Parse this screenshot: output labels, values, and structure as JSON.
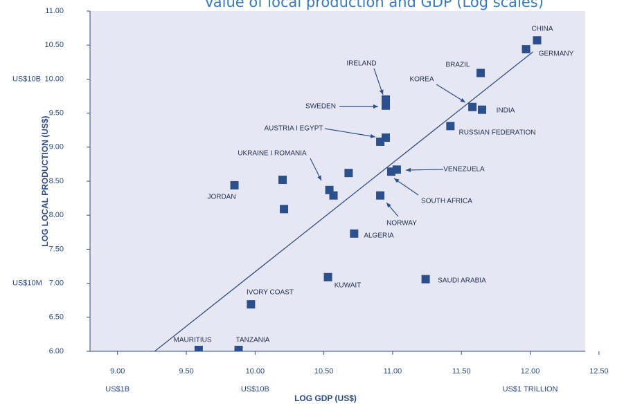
{
  "chart_data": {
    "type": "scatter",
    "title": "Value of local production and GDP (Log scales)",
    "x_label": "LOG GDP (US$)",
    "y_label": "LOG LOCAL PRODUCTION (US$)",
    "color": "#2b4f8a",
    "background": "#e6e7f2",
    "x": [
      12.05,
      11.97,
      11.64,
      11.58,
      11.65,
      11.42,
      10.95,
      10.95,
      10.95,
      10.91,
      11.03,
      10.99,
      10.91,
      10.72,
      10.68,
      10.54,
      10.57,
      10.2,
      10.21,
      9.85,
      10.53,
      11.24,
      9.97,
      9.59,
      9.88
    ],
    "values": [
      10.57,
      10.44,
      10.09,
      9.59,
      9.55,
      9.31,
      9.7,
      9.61,
      9.14,
      9.08,
      8.67,
      8.64,
      8.29,
      7.73,
      8.62,
      8.37,
      8.29,
      8.52,
      8.09,
      8.44,
      7.09,
      7.06,
      6.69,
      6.02,
      6.02
    ],
    "annotations": [
      "CHINA",
      "GERMANY",
      "BRAZIL",
      "KOREA",
      "INDIA",
      "RUSSIAN FEDERATION",
      "IRELAND",
      "SWEDEN",
      "AUSTRIA I EGYPT",
      "VENEZUELA",
      "SOUTH AFRICA",
      "NORWAY",
      "ALGERIA",
      "UKRAINE I ROMANIA",
      "JORDAN",
      "KUWAIT",
      "SAUDI ARABIA",
      "IVORY COAST",
      "MAURITIUS",
      "TANZANIA"
    ],
    "trendline": {
      "x": [
        9.27,
        12.02
      ],
      "values": [
        6.0,
        10.4
      ]
    },
    "xlim": [
      8.8,
      12.4
    ],
    "ylim": [
      6,
      11
    ],
    "xticks": [
      {
        "value": 9,
        "label": "9.00"
      },
      {
        "value": 9.5,
        "label": "9.50"
      },
      {
        "value": 10,
        "label": "10.00"
      },
      {
        "value": 10.5,
        "label": "10.50"
      },
      {
        "value": 11,
        "label": "11.00"
      },
      {
        "value": 11.5,
        "label": "11.50"
      },
      {
        "value": 12,
        "label": "12.00"
      },
      {
        "value": 12.5,
        "label": "12.50"
      }
    ],
    "yticks": [
      {
        "value": 6,
        "label": "6.00"
      },
      {
        "value": 6.5,
        "label": "6.50"
      },
      {
        "value": 7,
        "label": "7.00"
      },
      {
        "value": 7.5,
        "label": "7.50"
      },
      {
        "value": 8,
        "label": "8.00"
      },
      {
        "value": 8.5,
        "label": "8.50"
      },
      {
        "value": 9,
        "label": "9.00"
      },
      {
        "value": 9.5,
        "label": "9.50"
      },
      {
        "value": 10,
        "label": "10.00"
      },
      {
        "value": 10.5,
        "label": "10.50"
      },
      {
        "value": 11,
        "label": "11.00"
      }
    ],
    "x_dollar_ticks": [
      {
        "value": 9,
        "label": "US$1B"
      },
      {
        "value": 10,
        "label": "US$10B"
      },
      {
        "value": 12,
        "label": "US$1 TRILLION"
      }
    ],
    "y_dollar_ticks": [
      {
        "value": 10,
        "label": "US$10B"
      },
      {
        "value": 7,
        "label": "US$10M"
      }
    ]
  }
}
